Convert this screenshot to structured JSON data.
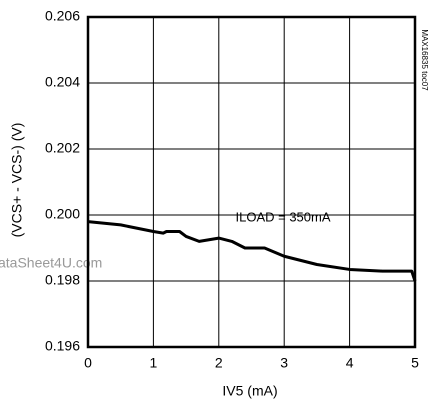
{
  "chart_data": {
    "type": "line",
    "xlabel": "IV5 (mA)",
    "ylabel": "(VCS+ - VCS-) (V)",
    "annotations": [
      "ILOAD = 350mA",
      "MAX16835 toc07",
      "ataSheet4U.com"
    ],
    "x": [
      0,
      0.5,
      1,
      1.15,
      1.2,
      1.3,
      1.4,
      1.5,
      1.7,
      2,
      2.2,
      2.4,
      2.7,
      3,
      3.5,
      4,
      4.5,
      4.95,
      5
    ],
    "series": [
      {
        "name": "ILOAD = 350mA",
        "color": "#000000",
        "values": [
          0.1998,
          0.1997,
          0.1995,
          0.19945,
          0.1995,
          0.1995,
          0.1995,
          0.19935,
          0.1992,
          0.1993,
          0.1992,
          0.199,
          0.199,
          0.19875,
          0.1985,
          0.19835,
          0.1983,
          0.1983,
          0.198
        ]
      }
    ],
    "xlim": [
      0,
      5
    ],
    "xticks": [
      0,
      1,
      2,
      3,
      4,
      5
    ],
    "ylim": [
      0.196,
      0.206
    ],
    "yticks": [
      0.196,
      0.198,
      {
        "value": 0.2,
        "label": "0.200"
      },
      0.202,
      0.204,
      0.206
    ],
    "grid": true
  }
}
